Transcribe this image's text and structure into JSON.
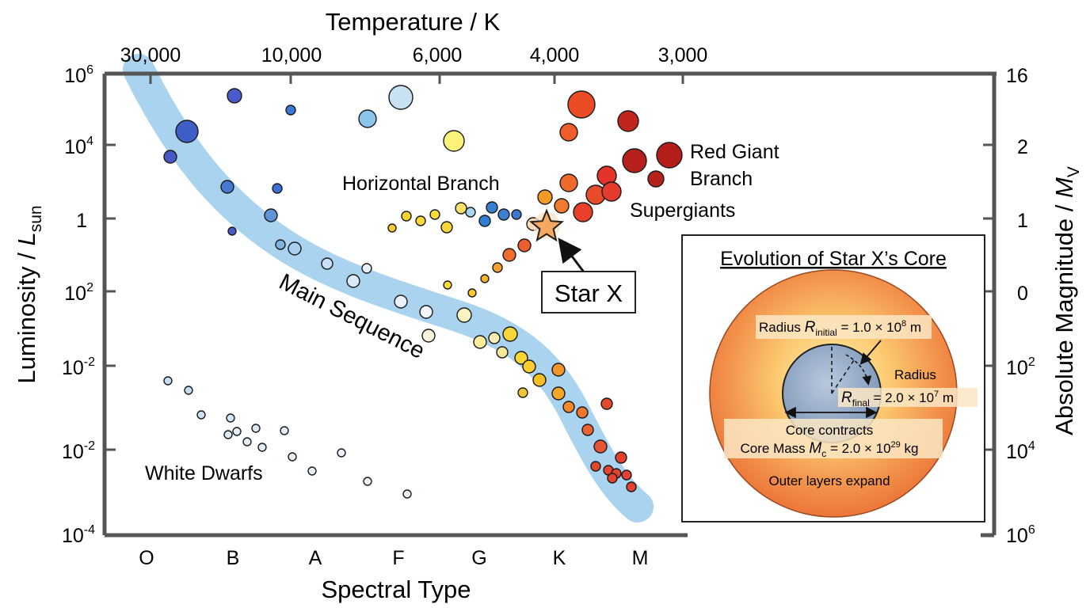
{
  "top_axis": {
    "title": "Temperature / K",
    "ticks": [
      "30,000",
      "10,000",
      "6,000",
      "4,000",
      "3,000"
    ]
  },
  "bottom_axis": {
    "title": "Spectral Type",
    "ticks": [
      "O",
      "B",
      "A",
      "F",
      "G",
      "K",
      "M"
    ]
  },
  "left_axis": {
    "title_main": "Luminosity / ",
    "title_italic": "L",
    "title_sub": "sun",
    "ticks": [
      {
        "base": "10",
        "exp": "6"
      },
      {
        "base": "10",
        "exp": "4"
      },
      {
        "base": "1",
        "exp": ""
      },
      {
        "base": "10",
        "exp": "2"
      },
      {
        "base": "10",
        "exp": "-2"
      },
      {
        "base": "10",
        "exp": "-2"
      },
      {
        "base": "10",
        "exp": "-4"
      }
    ]
  },
  "right_axis": {
    "title_main": "Absolute Magnitude / ",
    "title_italic": "M",
    "title_sub": "V",
    "ticks": [
      {
        "base": "16",
        "exp": ""
      },
      {
        "base": "2",
        "exp": ""
      },
      {
        "base": "1",
        "exp": ""
      },
      {
        "base": "0",
        "exp": ""
      },
      {
        "base": "10",
        "exp": "2"
      },
      {
        "base": "10",
        "exp": "4"
      },
      {
        "base": "10",
        "exp": "6"
      }
    ]
  },
  "labels": {
    "main_sequence": "Main Sequence",
    "horizontal_branch": "Horizontal Branch",
    "red_giant_line1": "Red Giant",
    "red_giant_line2": "Branch",
    "supergiants": "Supergiants",
    "white_dwarfs": "White Dwarfs",
    "star_x": "Star X"
  },
  "inset": {
    "title": "Evolution of Star X’s Core",
    "radius_initial_pre": "Radius ",
    "radius_initial_R": "R",
    "radius_initial_sub": "initial",
    "radius_initial_val": " = 1.0 × 10",
    "radius_initial_exp": "8",
    "radius_initial_unit": " m",
    "radius_final_word": "Radius",
    "radius_final_R": "R",
    "radius_final_sub": "final",
    "radius_final_val": " = 2.0 × 10",
    "radius_final_exp": "7",
    "radius_final_unit": " m",
    "core_contracts": "Core contracts",
    "core_mass_pre": "Core Mass ",
    "core_mass_M": "M",
    "core_mass_sub": "c",
    "core_mass_val": " = 2.0 × 10",
    "core_mass_exp": "29",
    "core_mass_unit": " kg",
    "outer_layers": "Outer layers expand"
  },
  "colors": {
    "main_sequence_band": "#a9d3ee",
    "axis": "#555555",
    "star_x": "#f4a860",
    "core_blue": "#8fa6c4",
    "envelope_orange": "#ef7a3a"
  }
}
